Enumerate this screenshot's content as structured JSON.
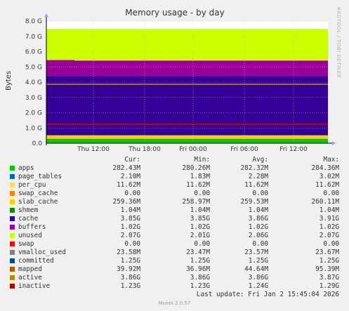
{
  "chart_data": {
    "type": "area",
    "title": "Memory usage - by day",
    "ylabel": "Bytes",
    "ylim": [
      0,
      8
    ],
    "y_unit": "G",
    "y_ticks": [
      "0.0",
      "1.0 G",
      "2.0 G",
      "3.0 G",
      "4.0 G",
      "5.0 G",
      "6.0 G",
      "7.0 G",
      "8.0 G"
    ],
    "x_ticks": [
      "Thu 12:00",
      "Thu 18:00",
      "Fri 00:00",
      "Fri 06:00",
      "Fri 12:00"
    ],
    "stacked_series": [
      {
        "name": "apps",
        "color": "#00cc00",
        "value_gb": 0.28
      },
      {
        "name": "page_tables",
        "color": "#0066b3",
        "value_gb": 0.002
      },
      {
        "name": "per_cpu",
        "color": "#ff8000",
        "value_gb": 0.011
      },
      {
        "name": "swap_cache",
        "color": "#ffcc00",
        "value_gb": 0.0
      },
      {
        "name": "slab_cache",
        "color": "#ffcc00",
        "value_gb": 0.25
      },
      {
        "name": "shmem",
        "color": "#330099",
        "value_gb": 0.001
      },
      {
        "name": "cache",
        "color": "#330099",
        "value_gb": 3.85
      },
      {
        "name": "buffers",
        "color": "#990099",
        "value_gb": 1.02
      },
      {
        "name": "unused",
        "color": "#ccff00",
        "value_gb": 2.07
      }
    ],
    "line_series": [
      {
        "name": "committed",
        "color": "#cc0000",
        "value_gb": 1.25
      },
      {
        "name": "active",
        "color": "#b8860b",
        "value_gb": 3.86
      }
    ],
    "grid": true
  },
  "rrd_label": "RRDTOOL / TOBI OETIKER",
  "legend_headers": {
    "cur": "Cur:",
    "min": "Min:",
    "avg": "Avg:",
    "max": "Max:"
  },
  "legend": [
    {
      "name": "apps",
      "color": "#00cc00",
      "cur": "282.43M",
      "min": "280.26M",
      "avg": "282.32M",
      "max": "284.36M"
    },
    {
      "name": "page_tables",
      "color": "#0066b3",
      "cur": "2.10M",
      "min": "1.83M",
      "avg": "2.28M",
      "max": "3.02M"
    },
    {
      "name": "per_cpu",
      "color": "#ffd966",
      "cur": "11.62M",
      "min": "11.62M",
      "avg": "11.62M",
      "max": "11.62M"
    },
    {
      "name": "swap_cache",
      "color": "#ff8000",
      "cur": "0.00",
      "min": "0.00",
      "avg": "0.00",
      "max": "0.00"
    },
    {
      "name": "slab_cache",
      "color": "#ffcc00",
      "cur": "259.36M",
      "min": "258.97M",
      "avg": "259.53M",
      "max": "260.11M"
    },
    {
      "name": "shmem",
      "color": "#008f00",
      "cur": "1.04M",
      "min": "1.04M",
      "avg": "1.04M",
      "max": "1.04M"
    },
    {
      "name": "cache",
      "color": "#330099",
      "cur": "3.85G",
      "min": "3.85G",
      "avg": "3.86G",
      "max": "3.91G"
    },
    {
      "name": "buffers",
      "color": "#990099",
      "cur": "1.02G",
      "min": "1.02G",
      "avg": "1.02G",
      "max": "1.02G"
    },
    {
      "name": "unused",
      "color": "#ccff00",
      "cur": "2.07G",
      "min": "2.01G",
      "avg": "2.06G",
      "max": "2.07G"
    },
    {
      "name": "swap",
      "color": "#ff0000",
      "cur": "0.00",
      "min": "0.00",
      "avg": "0.00",
      "max": "0.00"
    },
    {
      "name": "vmalloc_used",
      "color": "#808080",
      "cur": "23.58M",
      "min": "23.47M",
      "avg": "23.57M",
      "max": "23.67M"
    },
    {
      "name": "committed",
      "color": "#004d80",
      "cur": "1.25G",
      "min": "1.25G",
      "avg": "1.25G",
      "max": "1.25G"
    },
    {
      "name": "mapped",
      "color": "#b35900",
      "cur": "39.92M",
      "min": "36.96M",
      "avg": "44.64M",
      "max": "95.39M"
    },
    {
      "name": "active",
      "color": "#b38f00",
      "cur": "3.86G",
      "min": "3.86G",
      "avg": "3.86G",
      "max": "3.87G"
    },
    {
      "name": "inactive",
      "color": "#b30000",
      "cur": "1.23G",
      "min": "1.23G",
      "avg": "1.24G",
      "max": "1.29G"
    }
  ],
  "last_update": "Last update: Fri Jan  2 15:45:04 2026",
  "footer": "Munin 2.0.57"
}
